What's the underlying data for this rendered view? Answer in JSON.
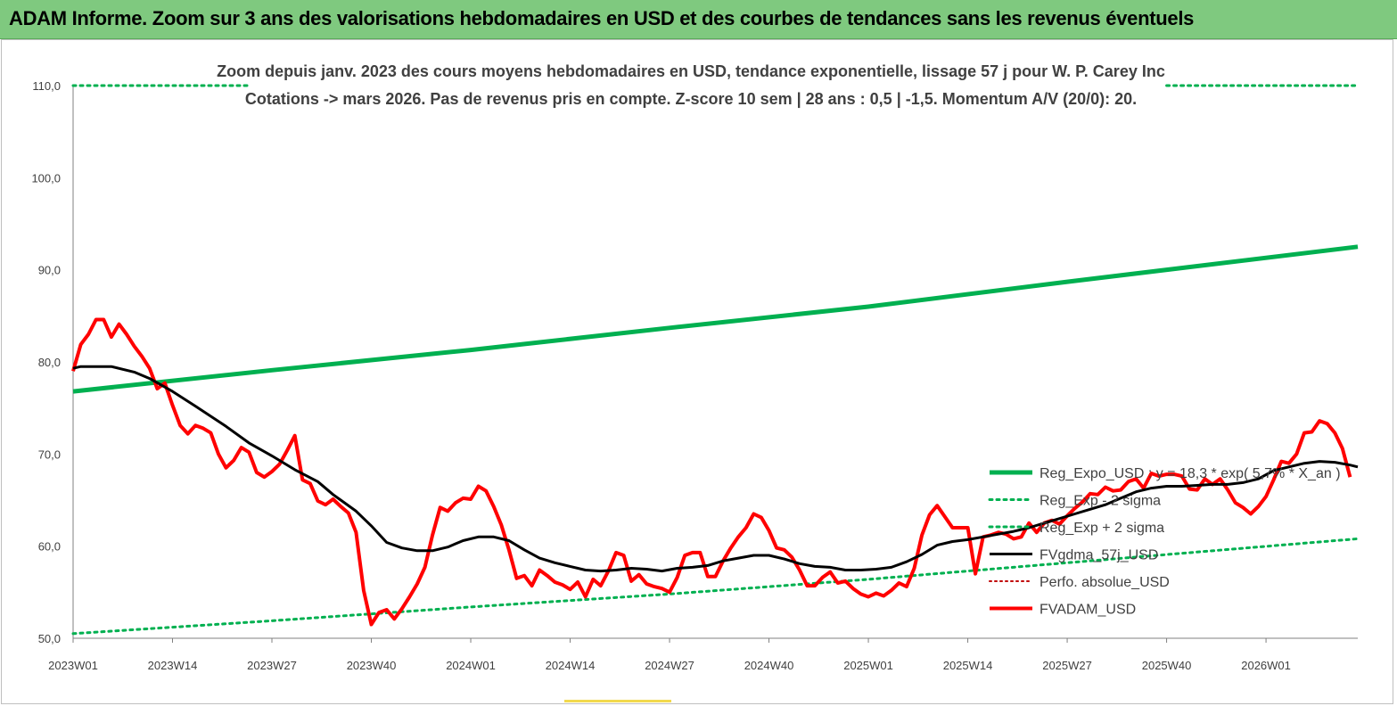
{
  "header": {
    "title": "ADAM Informe. Zoom sur 3 ans des valorisations hebdomadaires en USD et des courbes de tendances sans les revenus éventuels"
  },
  "chart_data": {
    "type": "line",
    "subtitle_line1": "Zoom depuis janv. 2023 des cours moyens hebdomadaires en USD, tendance exponentielle, lissage 57 j pour W. P. Carey Inc",
    "subtitle_line2": "Cotations -> mars 2026. Pas de revenus pris en compte. Z-score 10 sem | 28 ans : 0,5 | -1,5. Momentum A/V (20/0): 20.",
    "ylim": [
      50,
      110
    ],
    "yticks": [
      "50,0",
      "60,0",
      "70,0",
      "80,0",
      "90,0",
      "100,0",
      "110,0"
    ],
    "xlim": [
      0,
      168
    ],
    "xticks": [
      {
        "label": "2023W01",
        "i": 0
      },
      {
        "label": "2023W14",
        "i": 13
      },
      {
        "label": "2023W27",
        "i": 26
      },
      {
        "label": "2023W40",
        "i": 39
      },
      {
        "label": "2024W01",
        "i": 52
      },
      {
        "label": "2024W14",
        "i": 65
      },
      {
        "label": "2024W27",
        "i": 78
      },
      {
        "label": "2024W40",
        "i": 91
      },
      {
        "label": "2025W01",
        "i": 104
      },
      {
        "label": "2025W14",
        "i": 117
      },
      {
        "label": "2025W27",
        "i": 130
      },
      {
        "label": "2025W40",
        "i": 143
      },
      {
        "label": "2026W01",
        "i": 156
      }
    ],
    "grid": false,
    "legend_position": "right",
    "colors": {
      "green": "#00b050",
      "black": "#000000",
      "red": "#ff0000",
      "red_dotted": "#c00000"
    },
    "series": [
      {
        "name": "Reg_Expo_USD : y = 18,3 * exp( 5,7% * X_an )",
        "style": "solid",
        "color": "#00b050",
        "width": 5,
        "points": [
          [
            0,
            76.8
          ],
          [
            26,
            79.1
          ],
          [
            52,
            81.3
          ],
          [
            78,
            83.7
          ],
          [
            104,
            86.0
          ],
          [
            130,
            88.7
          ],
          [
            168,
            92.5
          ]
        ]
      },
      {
        "name": "Reg_Exp - 2 sigma",
        "style": "dotted",
        "color": "#00b050",
        "width": 3,
        "points": [
          [
            0,
            50.5
          ],
          [
            26,
            51.9
          ],
          [
            52,
            53.4
          ],
          [
            78,
            54.8
          ],
          [
            104,
            56.4
          ],
          [
            130,
            58.2
          ],
          [
            168,
            60.8
          ]
        ]
      },
      {
        "name": "Reg_Exp + 2 sigma",
        "style": "dotted",
        "color": "#00b050",
        "width": 3,
        "segments": [
          [
            [
              0,
              110.0
            ],
            [
              23,
              110.0
            ]
          ],
          [
            [
              143,
              110.0
            ],
            [
              168,
              110.0
            ]
          ]
        ]
      },
      {
        "name": "FVgdma_57j_USD",
        "style": "solid",
        "color": "#000000",
        "width": 3,
        "points": [
          [
            0,
            79.3
          ],
          [
            1,
            79.5
          ],
          [
            5,
            79.5
          ],
          [
            8,
            78.9
          ],
          [
            10,
            78.2
          ],
          [
            13,
            76.8
          ],
          [
            16,
            75.2
          ],
          [
            20,
            73.0
          ],
          [
            23,
            71.2
          ],
          [
            26,
            69.8
          ],
          [
            29,
            68.3
          ],
          [
            32,
            67.0
          ],
          [
            34,
            65.6
          ],
          [
            37,
            63.8
          ],
          [
            39,
            62.2
          ],
          [
            41,
            60.4
          ],
          [
            43,
            59.8
          ],
          [
            45,
            59.5
          ],
          [
            47,
            59.5
          ],
          [
            49,
            59.9
          ],
          [
            51,
            60.6
          ],
          [
            53,
            61.0
          ],
          [
            55,
            61.0
          ],
          [
            57,
            60.6
          ],
          [
            59,
            59.6
          ],
          [
            61,
            58.7
          ],
          [
            63,
            58.2
          ],
          [
            65,
            57.8
          ],
          [
            67,
            57.4
          ],
          [
            69,
            57.3
          ],
          [
            71,
            57.4
          ],
          [
            73,
            57.6
          ],
          [
            75,
            57.5
          ],
          [
            77,
            57.3
          ],
          [
            79,
            57.6
          ],
          [
            81,
            57.7
          ],
          [
            83,
            57.9
          ],
          [
            85,
            58.4
          ],
          [
            87,
            58.7
          ],
          [
            89,
            59.0
          ],
          [
            91,
            59.0
          ],
          [
            93,
            58.6
          ],
          [
            95,
            58.1
          ],
          [
            97,
            57.8
          ],
          [
            99,
            57.7
          ],
          [
            101,
            57.4
          ],
          [
            103,
            57.4
          ],
          [
            105,
            57.5
          ],
          [
            107,
            57.7
          ],
          [
            109,
            58.3
          ],
          [
            111,
            59.1
          ],
          [
            113,
            60.1
          ],
          [
            115,
            60.5
          ],
          [
            117,
            60.7
          ],
          [
            119,
            61.0
          ],
          [
            121,
            61.3
          ],
          [
            123,
            61.6
          ],
          [
            125,
            62.0
          ],
          [
            127,
            62.5
          ],
          [
            129,
            63.0
          ],
          [
            131,
            63.5
          ],
          [
            133,
            64.0
          ],
          [
            135,
            64.5
          ],
          [
            137,
            65.2
          ],
          [
            139,
            65.9
          ],
          [
            141,
            66.3
          ],
          [
            143,
            66.5
          ],
          [
            145,
            66.5
          ],
          [
            147,
            66.6
          ],
          [
            149,
            66.7
          ],
          [
            151,
            66.7
          ],
          [
            153,
            66.9
          ],
          [
            155,
            67.3
          ],
          [
            157,
            68.2
          ],
          [
            159,
            68.6
          ],
          [
            161,
            69.0
          ],
          [
            163,
            69.2
          ],
          [
            165,
            69.1
          ],
          [
            167,
            68.8
          ],
          [
            168,
            68.6
          ]
        ]
      },
      {
        "name": "Perfo. absolue_USD",
        "style": "dotted",
        "color": "#c00000",
        "width": 2,
        "points": []
      },
      {
        "name": "FVADAM_USD",
        "style": "solid",
        "color": "#ff0000",
        "width": 4,
        "points": [
          [
            0,
            79.0
          ],
          [
            1,
            81.9
          ],
          [
            2,
            83.0
          ],
          [
            3,
            84.6
          ],
          [
            4,
            84.6
          ],
          [
            5,
            82.7
          ],
          [
            6,
            84.1
          ],
          [
            7,
            83.0
          ],
          [
            8,
            81.7
          ],
          [
            9,
            80.6
          ],
          [
            10,
            79.3
          ],
          [
            11,
            77.1
          ],
          [
            12,
            77.7
          ],
          [
            13,
            75.3
          ],
          [
            14,
            73.1
          ],
          [
            15,
            72.2
          ],
          [
            16,
            73.1
          ],
          [
            17,
            72.8
          ],
          [
            18,
            72.3
          ],
          [
            19,
            70.0
          ],
          [
            20,
            68.5
          ],
          [
            21,
            69.3
          ],
          [
            22,
            70.7
          ],
          [
            23,
            70.2
          ],
          [
            24,
            68.0
          ],
          [
            25,
            67.5
          ],
          [
            26,
            68.1
          ],
          [
            27,
            68.9
          ],
          [
            28,
            70.4
          ],
          [
            29,
            72.0
          ],
          [
            30,
            67.2
          ],
          [
            31,
            66.8
          ],
          [
            32,
            64.9
          ],
          [
            33,
            64.5
          ],
          [
            34,
            65.1
          ],
          [
            35,
            64.3
          ],
          [
            36,
            63.6
          ],
          [
            37,
            61.5
          ],
          [
            38,
            55.2
          ],
          [
            39,
            51.5
          ],
          [
            40,
            52.8
          ],
          [
            41,
            53.1
          ],
          [
            42,
            52.1
          ],
          [
            43,
            53.2
          ],
          [
            44,
            54.5
          ],
          [
            45,
            55.9
          ],
          [
            46,
            57.7
          ],
          [
            47,
            61.2
          ],
          [
            48,
            64.2
          ],
          [
            49,
            63.8
          ],
          [
            50,
            64.7
          ],
          [
            51,
            65.2
          ],
          [
            52,
            65.1
          ],
          [
            53,
            66.5
          ],
          [
            54,
            66.0
          ],
          [
            55,
            64.3
          ],
          [
            56,
            62.3
          ],
          [
            57,
            59.6
          ],
          [
            58,
            56.5
          ],
          [
            59,
            56.8
          ],
          [
            60,
            55.7
          ],
          [
            61,
            57.4
          ],
          [
            62,
            56.8
          ],
          [
            63,
            56.1
          ],
          [
            64,
            55.8
          ],
          [
            65,
            55.3
          ],
          [
            66,
            56.1
          ],
          [
            67,
            54.5
          ],
          [
            68,
            56.4
          ],
          [
            69,
            55.7
          ],
          [
            70,
            57.3
          ],
          [
            71,
            59.3
          ],
          [
            72,
            59.0
          ],
          [
            73,
            56.2
          ],
          [
            74,
            56.9
          ],
          [
            75,
            55.9
          ],
          [
            76,
            55.6
          ],
          [
            77,
            55.4
          ],
          [
            78,
            55.0
          ],
          [
            79,
            56.6
          ],
          [
            80,
            59.0
          ],
          [
            81,
            59.3
          ],
          [
            82,
            59.3
          ],
          [
            83,
            56.7
          ],
          [
            84,
            56.7
          ],
          [
            85,
            58.4
          ],
          [
            86,
            59.8
          ],
          [
            87,
            61.0
          ],
          [
            88,
            62.0
          ],
          [
            89,
            63.5
          ],
          [
            90,
            63.1
          ],
          [
            91,
            61.7
          ],
          [
            92,
            59.8
          ],
          [
            93,
            59.6
          ],
          [
            94,
            58.8
          ],
          [
            95,
            57.4
          ],
          [
            96,
            55.7
          ],
          [
            97,
            55.7
          ],
          [
            98,
            56.6
          ],
          [
            99,
            57.2
          ],
          [
            100,
            56.0
          ],
          [
            101,
            56.2
          ],
          [
            102,
            55.4
          ],
          [
            103,
            54.8
          ],
          [
            104,
            54.5
          ],
          [
            105,
            54.9
          ],
          [
            106,
            54.6
          ],
          [
            107,
            55.2
          ],
          [
            108,
            56.0
          ],
          [
            109,
            55.6
          ],
          [
            110,
            57.6
          ],
          [
            111,
            61.2
          ],
          [
            112,
            63.4
          ],
          [
            113,
            64.4
          ],
          [
            114,
            63.2
          ],
          [
            115,
            62.0
          ],
          [
            116,
            62.0
          ],
          [
            117,
            62.0
          ],
          [
            118,
            57.0
          ],
          [
            119,
            61.0
          ],
          [
            120,
            61.2
          ],
          [
            121,
            61.5
          ],
          [
            122,
            61.3
          ],
          [
            123,
            60.8
          ],
          [
            124,
            61.0
          ],
          [
            125,
            62.5
          ],
          [
            126,
            61.5
          ],
          [
            127,
            62.5
          ],
          [
            128,
            62.8
          ],
          [
            129,
            62.4
          ],
          [
            130,
            63.3
          ],
          [
            131,
            64.1
          ],
          [
            132,
            64.8
          ],
          [
            133,
            65.7
          ],
          [
            134,
            65.6
          ],
          [
            135,
            66.4
          ],
          [
            136,
            66.0
          ],
          [
            137,
            66.1
          ],
          [
            138,
            67.0
          ],
          [
            139,
            67.3
          ],
          [
            140,
            66.3
          ],
          [
            141,
            67.9
          ],
          [
            142,
            67.6
          ],
          [
            143,
            67.8
          ],
          [
            144,
            67.8
          ],
          [
            145,
            67.6
          ],
          [
            146,
            66.2
          ],
          [
            147,
            66.1
          ],
          [
            148,
            67.3
          ],
          [
            149,
            66.7
          ],
          [
            150,
            67.3
          ],
          [
            151,
            66.1
          ],
          [
            152,
            64.7
          ],
          [
            153,
            64.2
          ],
          [
            154,
            63.5
          ],
          [
            155,
            64.3
          ],
          [
            156,
            65.4
          ],
          [
            157,
            67.2
          ],
          [
            158,
            69.2
          ],
          [
            159,
            69.0
          ],
          [
            160,
            70.0
          ],
          [
            161,
            72.3
          ],
          [
            162,
            72.4
          ],
          [
            163,
            73.6
          ],
          [
            164,
            73.3
          ],
          [
            165,
            72.3
          ],
          [
            166,
            70.6
          ],
          [
            167,
            67.5
          ]
        ]
      }
    ]
  }
}
